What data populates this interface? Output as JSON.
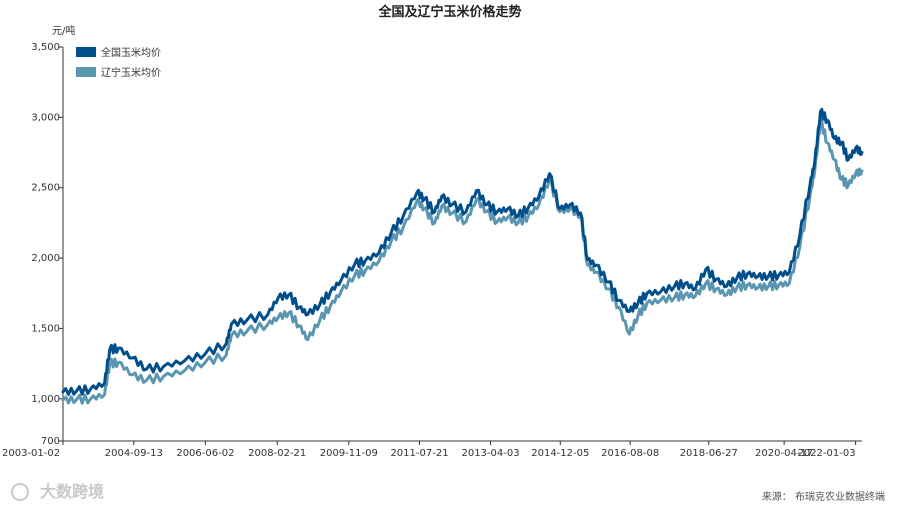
{
  "chart_data": {
    "type": "line",
    "title": "全国及辽宁玉米价格走势",
    "ylabel": "元/吨",
    "xlabel": "",
    "ylim": [
      700,
      3500
    ],
    "xlim": [
      "2003-01-02",
      "2022-02-28"
    ],
    "yticks": [
      700,
      1000,
      1500,
      2000,
      2500,
      3000,
      3500
    ],
    "ytick_labels": [
      "700",
      "1,000",
      "1,500",
      "2,000",
      "2,500",
      "3,000",
      "3,500"
    ],
    "xticks": [
      "2003-01-02",
      "2004-09-13",
      "2006-06-02",
      "2008-02-21",
      "2009-11-09",
      "2011-07-21",
      "2013-04-03",
      "2014-12-05",
      "2016-08-08",
      "2018-06-27",
      "2020-04-17",
      "2022-01-03"
    ],
    "grid": false,
    "legend_position": "top-left",
    "source": "来源：  布瑞克农业数据终端",
    "watermark": "大数跨境",
    "series": [
      {
        "name": "全国玉米均价",
        "color": "#004f8a",
        "x": [
          "2003-01-02",
          "2003-05-01",
          "2003-09-01",
          "2004-01-01",
          "2004-02-15",
          "2004-05-01",
          "2004-09-01",
          "2005-01-01",
          "2005-06-01",
          "2005-12-01",
          "2006-06-01",
          "2006-12-01",
          "2007-01-15",
          "2007-06-01",
          "2007-12-01",
          "2008-03-01",
          "2008-06-01",
          "2008-09-01",
          "2008-11-15",
          "2009-03-01",
          "2009-06-01",
          "2009-09-01",
          "2010-01-01",
          "2010-04-01",
          "2010-08-01",
          "2010-11-15",
          "2011-03-01",
          "2011-07-01",
          "2011-09-01",
          "2011-12-01",
          "2012-02-01",
          "2012-05-01",
          "2012-09-01",
          "2012-12-01",
          "2013-03-01",
          "2013-06-01",
          "2013-09-01",
          "2013-12-01",
          "2014-03-01",
          "2014-06-01",
          "2014-09-01",
          "2014-12-01",
          "2015-03-01",
          "2015-06-01",
          "2015-08-01",
          "2015-10-15",
          "2016-02-01",
          "2016-05-01",
          "2016-08-01",
          "2016-10-15",
          "2017-01-01",
          "2017-05-01",
          "2017-09-01",
          "2017-12-01",
          "2018-03-01",
          "2018-06-01",
          "2018-09-01",
          "2018-12-01",
          "2019-03-01",
          "2019-06-01",
          "2019-09-01",
          "2019-12-01",
          "2020-03-01",
          "2020-06-01",
          "2020-09-01",
          "2020-12-01",
          "2021-01-10",
          "2021-03-01",
          "2021-05-01",
          "2021-07-01",
          "2021-09-01",
          "2021-11-01",
          "2022-01-03",
          "2022-02-28"
        ],
        "values": [
          1050,
          1055,
          1070,
          1110,
          1350,
          1360,
          1290,
          1210,
          1230,
          1270,
          1320,
          1390,
          1530,
          1560,
          1600,
          1720,
          1740,
          1650,
          1600,
          1670,
          1760,
          1840,
          1960,
          1980,
          2040,
          2180,
          2300,
          2470,
          2420,
          2330,
          2440,
          2380,
          2330,
          2480,
          2380,
          2330,
          2350,
          2300,
          2360,
          2440,
          2600,
          2350,
          2380,
          2320,
          1990,
          1950,
          1830,
          1700,
          1620,
          1680,
          1750,
          1760,
          1800,
          1820,
          1780,
          1920,
          1850,
          1800,
          1860,
          1890,
          1870,
          1870,
          1880,
          1900,
          2160,
          2530,
          2680,
          3040,
          2980,
          2850,
          2820,
          2700,
          2780,
          2750
        ]
      },
      {
        "name": "辽宁玉米均价",
        "color": "#5a96b0",
        "x": [
          "2003-01-02",
          "2003-05-01",
          "2003-09-01",
          "2004-01-01",
          "2004-02-15",
          "2004-05-01",
          "2004-09-01",
          "2005-01-01",
          "2005-06-01",
          "2005-12-01",
          "2006-06-01",
          "2006-12-01",
          "2007-01-15",
          "2007-06-01",
          "2007-12-01",
          "2008-03-01",
          "2008-06-01",
          "2008-09-01",
          "2008-11-15",
          "2009-03-01",
          "2009-06-01",
          "2009-09-01",
          "2010-01-01",
          "2010-04-01",
          "2010-08-01",
          "2010-11-15",
          "2011-03-01",
          "2011-07-01",
          "2011-09-01",
          "2011-12-01",
          "2012-02-01",
          "2012-05-01",
          "2012-09-01",
          "2012-12-01",
          "2013-03-01",
          "2013-06-01",
          "2013-09-01",
          "2013-12-01",
          "2014-03-01",
          "2014-06-01",
          "2014-09-01",
          "2014-12-01",
          "2015-03-01",
          "2015-06-01",
          "2015-08-01",
          "2015-10-15",
          "2016-02-01",
          "2016-05-01",
          "2016-08-01",
          "2016-10-15",
          "2017-01-01",
          "2017-05-01",
          "2017-09-01",
          "2017-12-01",
          "2018-03-01",
          "2018-06-01",
          "2018-09-01",
          "2018-12-01",
          "2019-03-01",
          "2019-06-01",
          "2019-09-01",
          "2019-12-01",
          "2020-03-01",
          "2020-06-01",
          "2020-09-01",
          "2020-12-01",
          "2021-01-10",
          "2021-03-01",
          "2021-05-01",
          "2021-07-01",
          "2021-09-01",
          "2021-11-01",
          "2022-01-03",
          "2022-02-28"
        ],
        "values": [
          990,
          995,
          1000,
          1030,
          1250,
          1260,
          1170,
          1130,
          1160,
          1200,
          1260,
          1310,
          1450,
          1480,
          1530,
          1580,
          1610,
          1520,
          1420,
          1560,
          1660,
          1760,
          1880,
          1910,
          1980,
          2120,
          2220,
          2410,
          2350,
          2250,
          2370,
          2320,
          2260,
          2420,
          2330,
          2260,
          2290,
          2250,
          2300,
          2380,
          2560,
          2330,
          2350,
          2300,
          1950,
          1900,
          1780,
          1650,
          1460,
          1590,
          1680,
          1700,
          1720,
          1740,
          1730,
          1820,
          1780,
          1740,
          1790,
          1810,
          1790,
          1800,
          1810,
          1820,
          2080,
          2450,
          2620,
          2980,
          2820,
          2700,
          2560,
          2520,
          2600,
          2620
        ]
      }
    ]
  }
}
